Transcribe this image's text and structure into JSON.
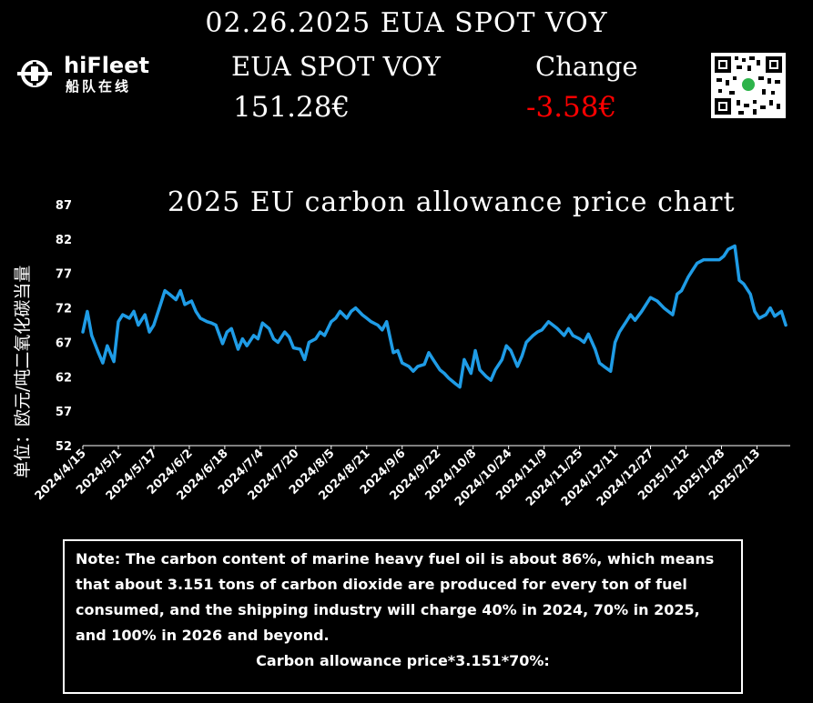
{
  "header": {
    "date_title": "02.26.2025 EUA SPOT VOY",
    "logo_text": "hiFleet",
    "logo_sub": "船队在线",
    "name_label": "EUA SPOT VOY",
    "change_label": "Change",
    "price": "151.28€",
    "change": "-3.58€",
    "change_color": "#ff0000"
  },
  "chart_data": {
    "type": "line",
    "title": "2025 EU carbon allowance price chart",
    "ylabel": "单位：欧元/吨二氧化碳当量",
    "xlabel": "",
    "ylim": [
      52,
      87
    ],
    "yticks": [
      52,
      57,
      62,
      67,
      72,
      77,
      82,
      87
    ],
    "grid": false,
    "color": "#1f9ce6",
    "xtick_labels": [
      "2024/4/15",
      "2024/5/1",
      "2024/5/17",
      "2024/6/2",
      "2024/6/18",
      "2024/7/4",
      "2024/7/20",
      "2024/8/5",
      "2024/8/21",
      "2024/9/6",
      "2024/9/22",
      "2024/10/8",
      "2024/10/24",
      "2024/11/9",
      "2024/11/25",
      "2024/12/11",
      "2024/12/27",
      "2025/1/12",
      "2025/1/28",
      "2025/2/13"
    ],
    "series": [
      {
        "x": [
          "2024-04-15",
          "2024-04-17",
          "2024-04-19",
          "2024-04-22",
          "2024-04-24",
          "2024-04-26",
          "2024-04-29",
          "2024-05-01",
          "2024-05-03",
          "2024-05-06",
          "2024-05-08",
          "2024-05-10",
          "2024-05-13",
          "2024-05-15",
          "2024-05-17",
          "2024-05-20",
          "2024-05-22",
          "2024-05-24",
          "2024-05-27",
          "2024-05-29",
          "2024-05-31",
          "2024-06-03",
          "2024-06-05",
          "2024-06-07",
          "2024-06-10",
          "2024-06-12",
          "2024-06-14",
          "2024-06-17",
          "2024-06-19",
          "2024-06-21",
          "2024-06-24",
          "2024-06-26",
          "2024-06-28",
          "2024-07-01",
          "2024-07-03",
          "2024-07-05",
          "2024-07-08",
          "2024-07-10",
          "2024-07-12",
          "2024-07-15",
          "2024-07-17",
          "2024-07-19",
          "2024-07-22",
          "2024-07-24",
          "2024-07-26",
          "2024-07-29",
          "2024-07-31",
          "2024-08-02",
          "2024-08-05",
          "2024-08-07",
          "2024-08-09",
          "2024-08-12",
          "2024-08-14",
          "2024-08-16",
          "2024-08-19",
          "2024-08-21",
          "2024-08-23",
          "2024-08-26",
          "2024-08-28",
          "2024-08-30",
          "2024-09-02",
          "2024-09-04",
          "2024-09-06",
          "2024-09-09",
          "2024-09-11",
          "2024-09-13",
          "2024-09-16",
          "2024-09-18",
          "2024-09-20",
          "2024-09-23",
          "2024-09-25",
          "2024-09-27",
          "2024-09-30",
          "2024-10-02",
          "2024-10-04",
          "2024-10-07",
          "2024-10-09",
          "2024-10-11",
          "2024-10-14",
          "2024-10-16",
          "2024-10-18",
          "2024-10-21",
          "2024-10-23",
          "2024-10-25",
          "2024-10-28",
          "2024-10-30",
          "2024-11-01",
          "2024-11-04",
          "2024-11-06",
          "2024-11-08",
          "2024-11-11",
          "2024-11-13",
          "2024-11-15",
          "2024-11-18",
          "2024-11-20",
          "2024-11-22",
          "2024-11-25",
          "2024-11-27",
          "2024-11-29",
          "2024-12-02",
          "2024-12-04",
          "2024-12-06",
          "2024-12-09",
          "2024-12-11",
          "2024-12-13",
          "2024-12-16",
          "2024-12-18",
          "2024-12-20",
          "2024-12-23",
          "2024-12-27",
          "2024-12-30",
          "2025-01-02",
          "2025-01-06",
          "2025-01-08",
          "2025-01-10",
          "2025-01-13",
          "2025-01-15",
          "2025-01-17",
          "2025-01-20",
          "2025-01-22",
          "2025-01-24",
          "2025-01-27",
          "2025-01-29",
          "2025-01-31",
          "2025-02-03",
          "2025-02-05",
          "2025-02-07",
          "2025-02-10",
          "2025-02-12",
          "2025-02-14",
          "2025-02-17",
          "2025-02-19",
          "2025-02-21",
          "2025-02-24",
          "2025-02-26"
        ],
        "values": [
          68.5,
          71.5,
          68.0,
          65.5,
          64.0,
          66.5,
          64.2,
          70.0,
          71.0,
          70.5,
          71.5,
          69.5,
          71.0,
          68.5,
          69.5,
          72.5,
          74.5,
          74.0,
          73.2,
          74.5,
          72.5,
          73.0,
          71.5,
          70.5,
          70.0,
          69.8,
          69.5,
          66.8,
          68.5,
          69.0,
          66.0,
          67.5,
          66.5,
          68.0,
          67.5,
          69.8,
          69.0,
          67.5,
          67.0,
          68.5,
          67.8,
          66.2,
          66.0,
          64.5,
          67.0,
          67.5,
          68.5,
          68.0,
          70.0,
          70.5,
          71.5,
          70.5,
          71.5,
          72.0,
          71.0,
          70.5,
          70.0,
          69.5,
          68.8,
          70.0,
          65.5,
          65.8,
          64.0,
          63.5,
          62.8,
          63.5,
          63.8,
          65.5,
          64.5,
          63.0,
          62.5,
          61.8,
          61.0,
          60.5,
          64.5,
          62.5,
          65.8,
          63.0,
          62.0,
          61.5,
          63.0,
          64.5,
          66.5,
          65.8,
          63.5,
          65.0,
          67.0,
          68.0,
          68.5,
          68.8,
          70.0,
          69.5,
          69.0,
          68.0,
          69.0,
          68.0,
          67.5,
          67.0,
          68.2,
          66.0,
          64.0,
          63.5,
          62.8,
          67.0,
          68.5,
          70.0,
          71.0,
          70.2,
          71.5,
          73.5,
          73.0,
          72.0,
          71.0,
          74.0,
          74.5,
          76.5,
          77.5,
          78.5,
          79.0,
          79.0,
          79.0,
          79.0,
          79.5,
          80.5,
          81.0,
          76.0,
          75.5,
          74.0,
          71.5,
          70.5,
          71.0,
          72.0,
          70.8,
          71.5,
          69.5
        ]
      }
    ]
  },
  "note": {
    "text": "Note: The carbon content of marine heavy fuel oil is about 86%, which means that about 3.151 tons of carbon dioxide are produced for every ton of fuel consumed, and the shipping industry will charge 40% in 2024, 70% in 2025, and 100% in 2026 and beyond.",
    "formula": "Carbon allowance price*3.151*70%:"
  }
}
